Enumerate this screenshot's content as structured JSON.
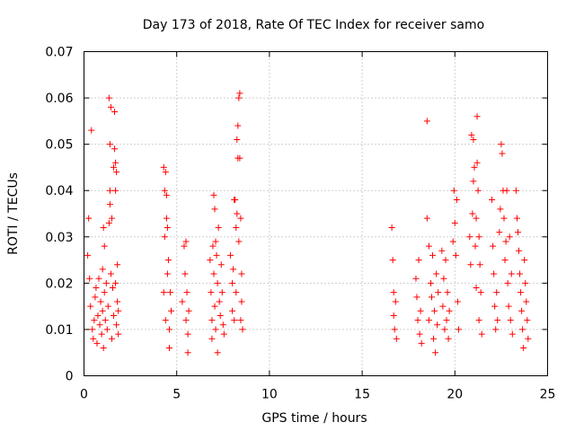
{
  "chart_data": {
    "type": "scatter",
    "title": "Day 173 of 2018, Rate Of TEC Index for receiver samo",
    "xlabel": "GPS time / hours",
    "ylabel": "ROTI / TECUs",
    "xlim": [
      0,
      25
    ],
    "ylim": [
      0,
      0.07
    ],
    "x_ticks": [
      "0",
      "5",
      "10",
      "15",
      "20",
      "25"
    ],
    "y_ticks": [
      "0",
      "0.01",
      "0.02",
      "0.03",
      "0.04",
      "0.05",
      "0.06",
      "0.07"
    ],
    "grid": true,
    "marker": "+",
    "color": "#ff0000",
    "series": [
      {
        "name": "ROTI",
        "points": [
          [
            0.2,
            0.026
          ],
          [
            0.25,
            0.034
          ],
          [
            0.3,
            0.021
          ],
          [
            0.35,
            0.015
          ],
          [
            0.4,
            0.053
          ],
          [
            0.45,
            0.01
          ],
          [
            0.5,
            0.008
          ],
          [
            0.55,
            0.012
          ],
          [
            0.6,
            0.017
          ],
          [
            0.65,
            0.019
          ],
          [
            0.7,
            0.007
          ],
          [
            0.75,
            0.013
          ],
          [
            0.8,
            0.021
          ],
          [
            0.85,
            0.011
          ],
          [
            0.9,
            0.016
          ],
          [
            0.95,
            0.009
          ],
          [
            1.0,
            0.023
          ],
          [
            1.0,
            0.014
          ],
          [
            1.05,
            0.032
          ],
          [
            1.05,
            0.006
          ],
          [
            1.1,
            0.028
          ],
          [
            1.1,
            0.018
          ],
          [
            1.15,
            0.012
          ],
          [
            1.2,
            0.02
          ],
          [
            1.25,
            0.01
          ],
          [
            1.3,
            0.015
          ],
          [
            1.35,
            0.033
          ],
          [
            1.35,
            0.06
          ],
          [
            1.4,
            0.04
          ],
          [
            1.4,
            0.05
          ],
          [
            1.4,
            0.037
          ],
          [
            1.45,
            0.058
          ],
          [
            1.45,
            0.022
          ],
          [
            1.5,
            0.034
          ],
          [
            1.5,
            0.008
          ],
          [
            1.55,
            0.019
          ],
          [
            1.6,
            0.045
          ],
          [
            1.6,
            0.013
          ],
          [
            1.65,
            0.049
          ],
          [
            1.65,
            0.057
          ],
          [
            1.7,
            0.04
          ],
          [
            1.7,
            0.046
          ],
          [
            1.7,
            0.02
          ],
          [
            1.75,
            0.044
          ],
          [
            1.75,
            0.011
          ],
          [
            1.8,
            0.024
          ],
          [
            1.8,
            0.016
          ],
          [
            1.85,
            0.014
          ],
          [
            1.85,
            0.009
          ],
          [
            4.3,
            0.045
          ],
          [
            4.3,
            0.018
          ],
          [
            4.35,
            0.04
          ],
          [
            4.35,
            0.03
          ],
          [
            4.4,
            0.044
          ],
          [
            4.4,
            0.012
          ],
          [
            4.45,
            0.039
          ],
          [
            4.45,
            0.034
          ],
          [
            4.5,
            0.032
          ],
          [
            4.5,
            0.022
          ],
          [
            4.55,
            0.025
          ],
          [
            4.6,
            0.01
          ],
          [
            4.6,
            0.006
          ],
          [
            4.65,
            0.018
          ],
          [
            4.7,
            0.014
          ],
          [
            5.3,
            0.016
          ],
          [
            5.4,
            0.028
          ],
          [
            5.45,
            0.022
          ],
          [
            5.5,
            0.029
          ],
          [
            5.5,
            0.012
          ],
          [
            5.55,
            0.018
          ],
          [
            5.6,
            0.009
          ],
          [
            5.6,
            0.005
          ],
          [
            5.65,
            0.014
          ],
          [
            6.8,
            0.025
          ],
          [
            6.85,
            0.018
          ],
          [
            6.9,
            0.012
          ],
          [
            6.9,
            0.008
          ],
          [
            6.95,
            0.028
          ],
          [
            7.0,
            0.039
          ],
          [
            7.0,
            0.022
          ],
          [
            7.05,
            0.036
          ],
          [
            7.05,
            0.015
          ],
          [
            7.1,
            0.029
          ],
          [
            7.1,
            0.01
          ],
          [
            7.15,
            0.026
          ],
          [
            7.2,
            0.02
          ],
          [
            7.2,
            0.005
          ],
          [
            7.25,
            0.032
          ],
          [
            7.3,
            0.016
          ],
          [
            7.35,
            0.013
          ],
          [
            7.4,
            0.024
          ],
          [
            7.45,
            0.018
          ],
          [
            7.5,
            0.011
          ],
          [
            7.55,
            0.009
          ],
          [
            7.9,
            0.026
          ],
          [
            8.0,
            0.02
          ],
          [
            8.0,
            0.014
          ],
          [
            8.05,
            0.023
          ],
          [
            8.1,
            0.038
          ],
          [
            8.1,
            0.012
          ],
          [
            8.15,
            0.038
          ],
          [
            8.2,
            0.032
          ],
          [
            8.2,
            0.018
          ],
          [
            8.25,
            0.051
          ],
          [
            8.25,
            0.035
          ],
          [
            8.3,
            0.047
          ],
          [
            8.3,
            0.054
          ],
          [
            8.35,
            0.06
          ],
          [
            8.35,
            0.029
          ],
          [
            8.4,
            0.061
          ],
          [
            8.4,
            0.047
          ],
          [
            8.45,
            0.034
          ],
          [
            8.45,
            0.012
          ],
          [
            8.5,
            0.022
          ],
          [
            8.5,
            0.016
          ],
          [
            8.55,
            0.01
          ],
          [
            16.6,
            0.032
          ],
          [
            16.65,
            0.025
          ],
          [
            16.7,
            0.018
          ],
          [
            16.7,
            0.013
          ],
          [
            16.75,
            0.01
          ],
          [
            16.8,
            0.016
          ],
          [
            16.85,
            0.008
          ],
          [
            17.9,
            0.021
          ],
          [
            17.95,
            0.017
          ],
          [
            18.0,
            0.012
          ],
          [
            18.05,
            0.025
          ],
          [
            18.1,
            0.009
          ],
          [
            18.15,
            0.014
          ],
          [
            18.2,
            0.007
          ],
          [
            18.5,
            0.055
          ],
          [
            18.5,
            0.034
          ],
          [
            18.6,
            0.028
          ],
          [
            18.6,
            0.012
          ],
          [
            18.7,
            0.02
          ],
          [
            18.75,
            0.017
          ],
          [
            18.8,
            0.026
          ],
          [
            18.85,
            0.008
          ],
          [
            18.9,
            0.014
          ],
          [
            18.95,
            0.005
          ],
          [
            19.0,
            0.022
          ],
          [
            19.05,
            0.011
          ],
          [
            19.1,
            0.018
          ],
          [
            19.3,
            0.027
          ],
          [
            19.35,
            0.015
          ],
          [
            19.4,
            0.021
          ],
          [
            19.45,
            0.01
          ],
          [
            19.5,
            0.025
          ],
          [
            19.55,
            0.012
          ],
          [
            19.6,
            0.018
          ],
          [
            19.65,
            0.008
          ],
          [
            19.7,
            0.014
          ],
          [
            19.9,
            0.029
          ],
          [
            19.95,
            0.04
          ],
          [
            20.0,
            0.033
          ],
          [
            20.05,
            0.026
          ],
          [
            20.1,
            0.038
          ],
          [
            20.15,
            0.016
          ],
          [
            20.2,
            0.01
          ],
          [
            20.8,
            0.03
          ],
          [
            20.85,
            0.024
          ],
          [
            20.9,
            0.052
          ],
          [
            20.95,
            0.035
          ],
          [
            21.0,
            0.051
          ],
          [
            21.0,
            0.042
          ],
          [
            21.05,
            0.045
          ],
          [
            21.1,
            0.028
          ],
          [
            21.15,
            0.034
          ],
          [
            21.15,
            0.019
          ],
          [
            21.2,
            0.056
          ],
          [
            21.2,
            0.046
          ],
          [
            21.25,
            0.04
          ],
          [
            21.3,
            0.03
          ],
          [
            21.3,
            0.012
          ],
          [
            21.35,
            0.024
          ],
          [
            21.4,
            0.018
          ],
          [
            21.45,
            0.009
          ],
          [
            22.0,
            0.038
          ],
          [
            22.05,
            0.028
          ],
          [
            22.1,
            0.022
          ],
          [
            22.15,
            0.015
          ],
          [
            22.2,
            0.01
          ],
          [
            22.25,
            0.018
          ],
          [
            22.3,
            0.012
          ],
          [
            22.4,
            0.031
          ],
          [
            22.45,
            0.036
          ],
          [
            22.5,
            0.05
          ],
          [
            22.55,
            0.048
          ],
          [
            22.6,
            0.04
          ],
          [
            22.65,
            0.034
          ],
          [
            22.7,
            0.025
          ],
          [
            22.75,
            0.029
          ],
          [
            22.8,
            0.04
          ],
          [
            22.85,
            0.02
          ],
          [
            22.9,
            0.015
          ],
          [
            22.95,
            0.03
          ],
          [
            23.0,
            0.012
          ],
          [
            23.05,
            0.022
          ],
          [
            23.1,
            0.009
          ],
          [
            23.3,
            0.04
          ],
          [
            23.35,
            0.034
          ],
          [
            23.4,
            0.031
          ],
          [
            23.45,
            0.027
          ],
          [
            23.5,
            0.022
          ],
          [
            23.55,
            0.018
          ],
          [
            23.6,
            0.014
          ],
          [
            23.65,
            0.01
          ],
          [
            23.7,
            0.006
          ],
          [
            23.75,
            0.025
          ],
          [
            23.8,
            0.02
          ],
          [
            23.85,
            0.016
          ],
          [
            23.9,
            0.012
          ],
          [
            23.95,
            0.008
          ]
        ]
      }
    ]
  }
}
